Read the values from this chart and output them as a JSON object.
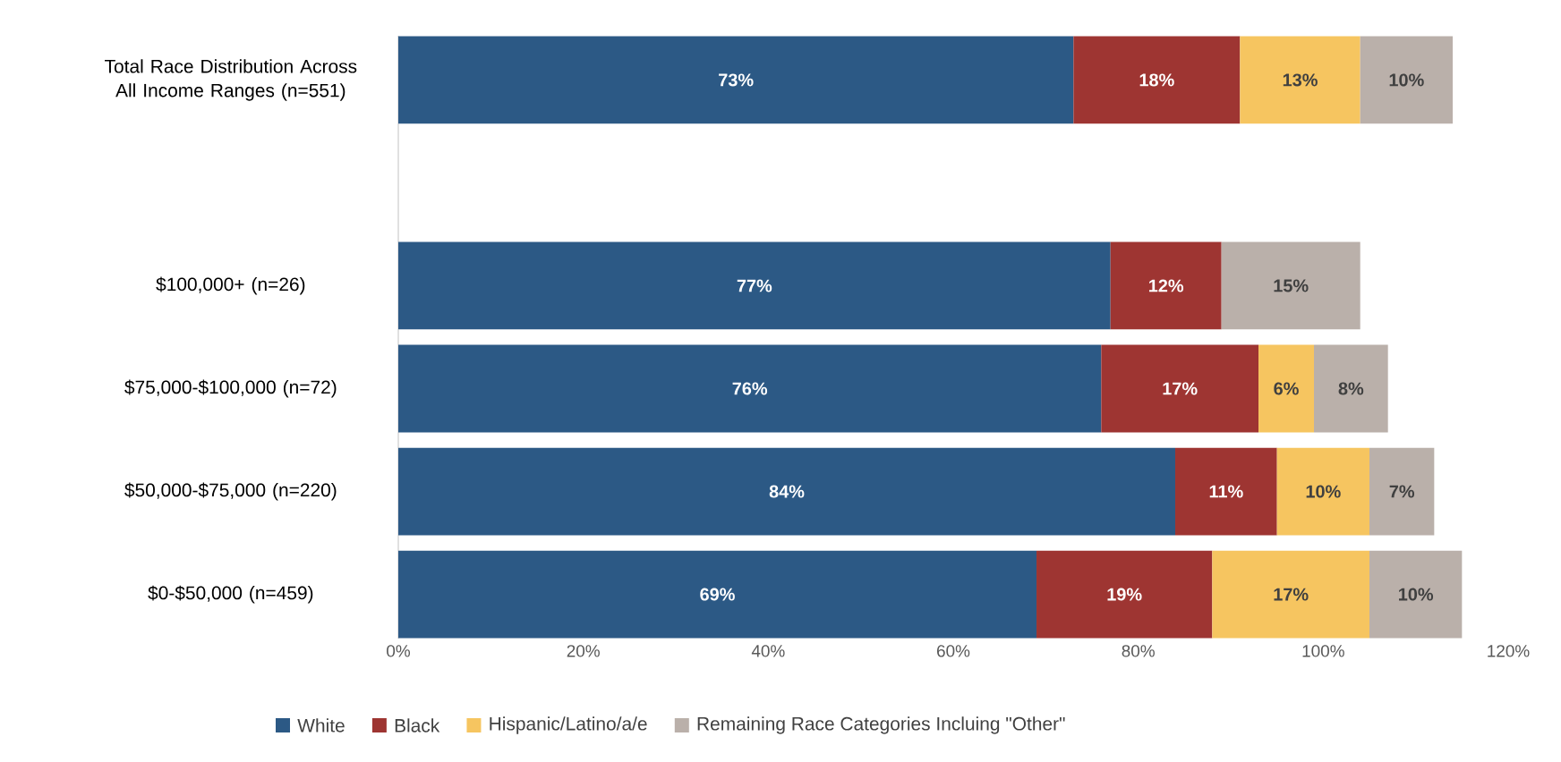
{
  "chart_data": {
    "type": "bar",
    "orientation": "horizontal",
    "stacked": true,
    "categories": [
      "Total Race Distribution Across All Income Ranges (n=551)",
      null,
      "$100,000+ (n=26)",
      "$75,000-$100,000 (n=72)",
      "$50,000-$75,000 (n=220)",
      "$0-$50,000 (n=459)"
    ],
    "series": [
      {
        "name": "White",
        "color": "#2c5985",
        "values": [
          73,
          null,
          77,
          76,
          84,
          69
        ],
        "value_labels": [
          "73%",
          null,
          "77%",
          "76%",
          "84%",
          "69%"
        ]
      },
      {
        "name": "Black",
        "color": "#9e3532",
        "values": [
          18,
          null,
          12,
          17,
          11,
          19
        ],
        "value_labels": [
          "18%",
          null,
          "12%",
          "17%",
          "11%",
          "19%"
        ]
      },
      {
        "name": "Hispanic/Latino/a/e",
        "color": "#f6c560",
        "values": [
          13,
          null,
          null,
          6,
          10,
          17
        ],
        "value_labels": [
          "13%",
          null,
          null,
          "6%",
          "10%",
          "17%"
        ]
      },
      {
        "name": "Remaining Race Categories Incluing \"Other\"",
        "color": "#bab0aa",
        "values": [
          10,
          null,
          15,
          8,
          7,
          10
        ],
        "value_labels": [
          "10%",
          null,
          "15%",
          "8%",
          "7%",
          "10%"
        ]
      }
    ],
    "xlim": [
      0,
      120
    ],
    "xticks": [
      {
        "value": 0,
        "label": "0%"
      },
      {
        "value": 20,
        "label": "20%"
      },
      {
        "value": 40,
        "label": "40%"
      },
      {
        "value": 60,
        "label": "60%"
      },
      {
        "value": 80,
        "label": "80%"
      },
      {
        "value": 100,
        "label": "100%"
      },
      {
        "value": 120,
        "label": "120%"
      }
    ],
    "grid": false,
    "legend": "bottom"
  }
}
